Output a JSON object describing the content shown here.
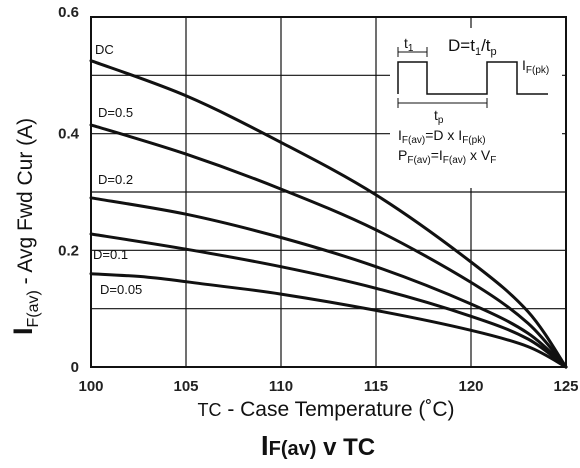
{
  "chart_data": {
    "type": "line",
    "title_main": "I",
    "title_sub": "F(av)",
    "title_rest": " v TC",
    "xlabel_prefix": "TC",
    "xlabel_text": " - Case Temperature (˚C)",
    "ylabel_main": "I",
    "ylabel_sub": "F(av)",
    "ylabel_rest": " - Avg Fwd Cur (A)",
    "xlim": [
      100,
      125
    ],
    "ylim": [
      0,
      0.6
    ],
    "x_ticks": [
      "100",
      "105",
      "110",
      "115",
      "120",
      "125"
    ],
    "y_ticks": [
      "0",
      "0.2",
      "0.4",
      "0.6"
    ],
    "grid": true,
    "series": [
      {
        "name": "DC",
        "x": [
          100,
          105,
          110,
          115,
          120,
          123,
          125
        ],
        "y": [
          0.525,
          0.465,
          0.385,
          0.295,
          0.18,
          0.095,
          0.0
        ]
      },
      {
        "name": "D=0.5",
        "x": [
          100,
          105,
          110,
          115,
          120,
          123,
          125
        ],
        "y": [
          0.415,
          0.365,
          0.305,
          0.235,
          0.145,
          0.075,
          0.0
        ]
      },
      {
        "name": "D=0.2",
        "x": [
          100,
          105,
          110,
          115,
          120,
          123,
          125
        ],
        "y": [
          0.29,
          0.262,
          0.222,
          0.172,
          0.108,
          0.058,
          0.0
        ]
      },
      {
        "name": "D=0.1",
        "x": [
          100,
          105,
          110,
          115,
          120,
          123,
          125
        ],
        "y": [
          0.228,
          0.202,
          0.172,
          0.135,
          0.087,
          0.048,
          0.0
        ]
      },
      {
        "name": "D=0.05",
        "x": [
          100,
          103,
          106,
          110,
          115,
          120,
          123,
          125
        ],
        "y": [
          0.16,
          0.154,
          0.142,
          0.125,
          0.097,
          0.063,
          0.035,
          0.0
        ]
      }
    ],
    "inset": {
      "t1": "t",
      "t1_sub": "1",
      "duty_formula_prefix": "D=t",
      "duty_formula_sub1": "1",
      "duty_formula_mid": "/t",
      "duty_formula_sub2": "p",
      "ipk": "I",
      "ipk_sub": "F(pk)",
      "tp": "t",
      "tp_sub": "p",
      "eq1_a": "I",
      "eq1_a_sub": "F(av)",
      "eq1_b": "=D x I",
      "eq1_b_sub": "F(pk)",
      "eq2_a": "P",
      "eq2_a_sub": "F(av)",
      "eq2_b": "=I",
      "eq2_b_sub": "F(av)",
      "eq2_c": " x V",
      "eq2_c_sub": "F"
    }
  }
}
